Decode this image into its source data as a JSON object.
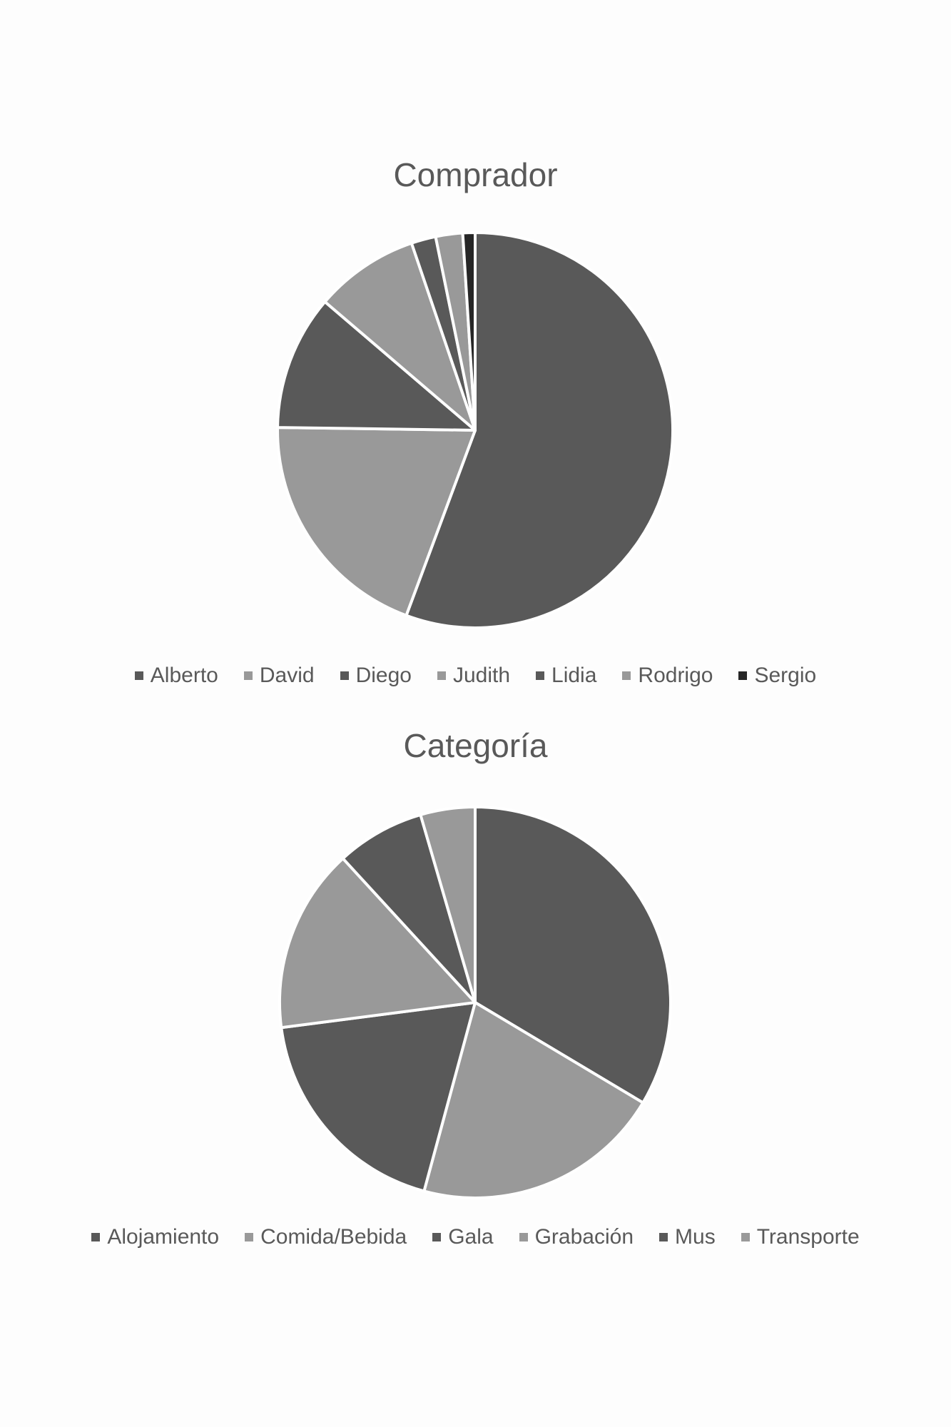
{
  "chart_data": [
    {
      "type": "pie",
      "title": "Comprador",
      "categories": [
        "Alberto",
        "David",
        "Diego",
        "Judith",
        "Lidia",
        "Rodrigo",
        "Sergio"
      ],
      "values": [
        55.5,
        19.5,
        11.0,
        8.5,
        2.0,
        2.2,
        1.0
      ],
      "colors": [
        "#595959",
        "#999999",
        "#595959",
        "#999999",
        "#595959",
        "#999999",
        "#262626"
      ],
      "legend": "bottom"
    },
    {
      "type": "pie",
      "title": "Categoría",
      "categories": [
        "Alojamiento",
        "Comida/Bebida",
        "Gala",
        "Grabación",
        "Mus",
        "Transporte"
      ],
      "values": [
        33.5,
        20.6,
        18.7,
        15.2,
        7.3,
        4.5
      ],
      "colors": [
        "#595959",
        "#999999",
        "#595959",
        "#999999",
        "#595959",
        "#999999"
      ],
      "legend": "bottom"
    }
  ]
}
